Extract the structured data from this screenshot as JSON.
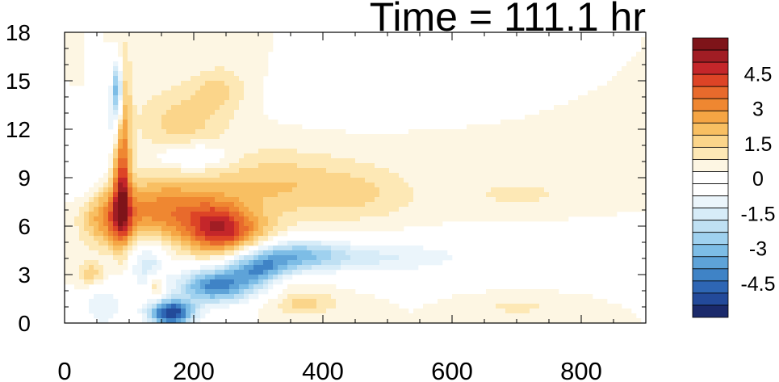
{
  "chart_data": {
    "type": "heatmap",
    "title": "Time = 111.1 hr",
    "x_ticks": [
      0,
      200,
      400,
      600,
      800
    ],
    "y_ticks": [
      0,
      3,
      6,
      9,
      12,
      15,
      18
    ],
    "xlim": [
      0,
      900
    ],
    "ylim": [
      0,
      18
    ],
    "colorbar": {
      "tick_labels": [
        "4.5",
        "3",
        "1.5",
        "0",
        "-1.5",
        "-3",
        "-4.5"
      ],
      "tick_values": [
        4.5,
        3,
        1.5,
        0,
        -1.5,
        -3,
        -4.5
      ],
      "levels": [
        -5.5,
        -5,
        -4.5,
        -4,
        -3.5,
        -3,
        -2.5,
        -2,
        -1.5,
        -1,
        -0.5,
        0,
        0.5,
        1,
        1.5,
        2,
        2.5,
        3,
        3.5,
        4,
        4.5,
        5,
        5.5
      ],
      "colors": [
        "#1b2a6b",
        "#234a9a",
        "#2e66b4",
        "#3f83c6",
        "#5ea3d8",
        "#7dbde6",
        "#9fd1ef",
        "#bfe0f3",
        "#d7ecf8",
        "#ebf5fb",
        "#ffffff",
        "#ffffff",
        "#fdf6e3",
        "#fde8b5",
        "#fbd58a",
        "#f8bf62",
        "#f5a544",
        "#ef8731",
        "#e86a2c",
        "#dd4426",
        "#c4262a",
        "#a11d24",
        "#7e1419"
      ]
    },
    "features": [
      {
        "x": 90,
        "y": 12,
        "value": 3.0,
        "sx": 9,
        "sy": 3
      },
      {
        "x": 88,
        "y": 7.5,
        "value": 2.5,
        "sx": 10,
        "sy": 2
      },
      {
        "x": 70,
        "y": 6.5,
        "value": 2.5,
        "sx": 30,
        "sy": 1.2
      },
      {
        "x": 150,
        "y": 7,
        "value": 2.5,
        "sx": 45,
        "sy": 1.4
      },
      {
        "x": 230,
        "y": 6.0,
        "value": 3.0,
        "sx": 35,
        "sy": 1.2
      },
      {
        "x": 270,
        "y": 5.5,
        "value": 2.0,
        "sx": 40,
        "sy": 1.0
      },
      {
        "x": 320,
        "y": 8.5,
        "value": 1.5,
        "sx": 90,
        "sy": 1.5
      },
      {
        "x": 470,
        "y": 8.0,
        "value": 0.8,
        "sx": 60,
        "sy": 1.2
      },
      {
        "x": 180,
        "y": 12.5,
        "value": 1.2,
        "sx": 50,
        "sy": 1.5
      },
      {
        "x": 240,
        "y": 14.5,
        "value": 1.0,
        "sx": 30,
        "sy": 1.0
      },
      {
        "x": 40,
        "y": 3.0,
        "value": 1.5,
        "sx": 15,
        "sy": 0.5
      },
      {
        "x": 140,
        "y": 2.3,
        "value": 2.0,
        "sx": 10,
        "sy": 0.6
      },
      {
        "x": 330,
        "y": 2.5,
        "value": 1.0,
        "sx": 40,
        "sy": 0.5
      },
      {
        "x": 370,
        "y": 1.2,
        "value": 1.2,
        "sx": 40,
        "sy": 0.5
      },
      {
        "x": 700,
        "y": 8.0,
        "value": 0.7,
        "sx": 60,
        "sy": 0.6
      },
      {
        "x": 700,
        "y": 1.0,
        "value": 0.7,
        "sx": 40,
        "sy": 0.4
      },
      {
        "x": 82,
        "y": 14.5,
        "value": -4.0,
        "sx": 6,
        "sy": 1.3
      },
      {
        "x": 78,
        "y": 12.5,
        "value": -1.5,
        "sx": 15,
        "sy": 1.5
      },
      {
        "x": 165,
        "y": 0.6,
        "value": -5.5,
        "sx": 25,
        "sy": 0.6
      },
      {
        "x": 230,
        "y": 2.3,
        "value": -4.0,
        "sx": 40,
        "sy": 0.8
      },
      {
        "x": 300,
        "y": 3.2,
        "value": -3.5,
        "sx": 35,
        "sy": 0.9
      },
      {
        "x": 360,
        "y": 4.2,
        "value": -2.5,
        "sx": 50,
        "sy": 0.7
      },
      {
        "x": 480,
        "y": 4.0,
        "value": -1.2,
        "sx": 90,
        "sy": 0.8
      },
      {
        "x": 700,
        "y": 4.2,
        "value": -0.6,
        "sx": 200,
        "sy": 0.8
      },
      {
        "x": 200,
        "y": 10.3,
        "value": -1.5,
        "sx": 40,
        "sy": 0.6
      },
      {
        "x": 130,
        "y": 3.5,
        "value": -2.0,
        "sx": 20,
        "sy": 1.2
      },
      {
        "x": 60,
        "y": 1.0,
        "value": -1.5,
        "sx": 25,
        "sy": 1.0
      },
      {
        "x": 420,
        "y": 14.0,
        "value": -0.6,
        "sx": 60,
        "sy": 1.0
      },
      {
        "x": 30,
        "y": 9.5,
        "value": -1.0,
        "sx": 20,
        "sy": 1.5
      }
    ]
  }
}
